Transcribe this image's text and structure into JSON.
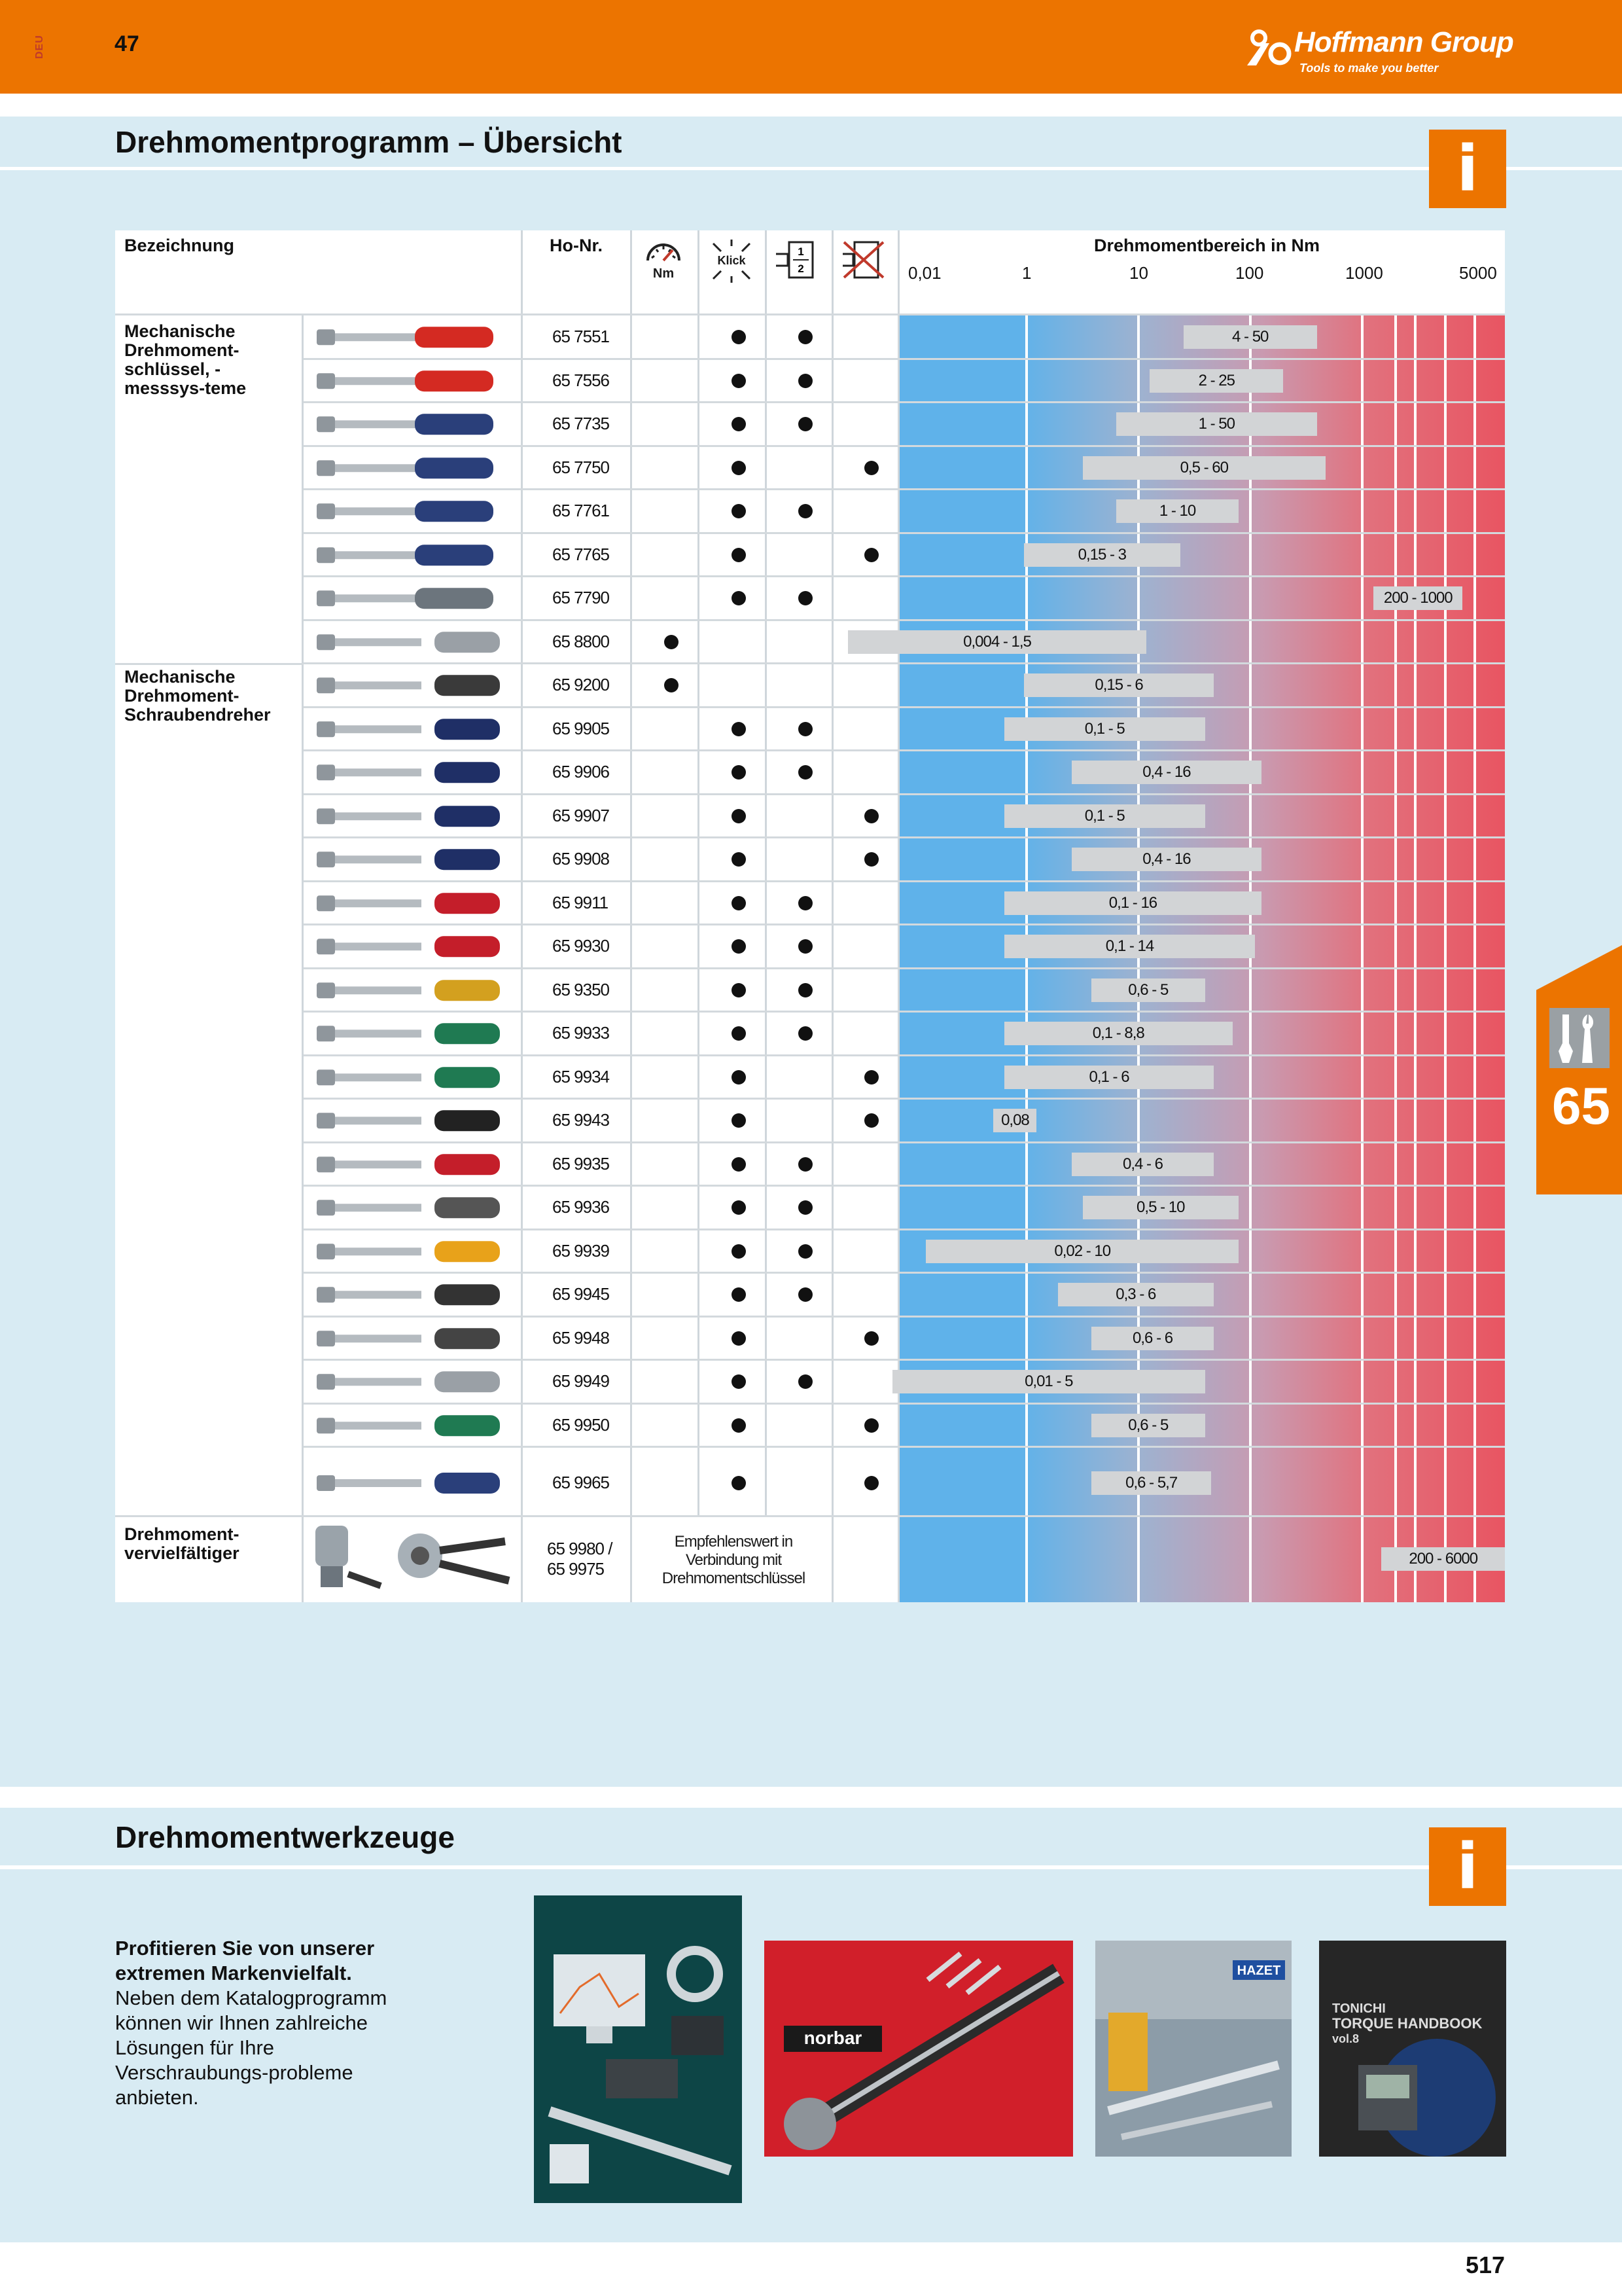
{
  "header": {
    "lang_code": "DEU",
    "page_ref": "47",
    "brand": "Hoffmann Group",
    "brand_mark": "®",
    "tagline": "Tools to make you better"
  },
  "section1": {
    "title": "Drehmomentprogramm – Übersicht",
    "info_icon": "i"
  },
  "table": {
    "headers": {
      "bezeichnung": "Bezeichnung",
      "hono": "Ho-Nr.",
      "nm_icon_label": "Nm",
      "klick_icon_label": "Klick",
      "fraction_icon": "1/2",
      "range_title": "Drehmomentbereich in Nm",
      "ticks": [
        "0,01",
        "1",
        "10",
        "100",
        "1000",
        "5000"
      ]
    },
    "categories": [
      "Mechanische Drehmoment-schlüssel, -messsys-teme",
      "Mechanische Drehmoment-Schraubendreher",
      "Drehmoment-vervielfältiger"
    ],
    "rows": [
      {
        "no": "65 7551",
        "c1": false,
        "c2": true,
        "c3": true,
        "c4": false,
        "range": "4 - 50"
      },
      {
        "no": "65 7556",
        "c1": false,
        "c2": true,
        "c3": true,
        "c4": false,
        "range": "2 - 25"
      },
      {
        "no": "65 7735",
        "c1": false,
        "c2": true,
        "c3": true,
        "c4": false,
        "range": "1 - 50"
      },
      {
        "no": "65 7750",
        "c1": false,
        "c2": true,
        "c3": false,
        "c4": true,
        "range": "0,5 - 60"
      },
      {
        "no": "65 7761",
        "c1": false,
        "c2": true,
        "c3": true,
        "c4": false,
        "range": "1 - 10"
      },
      {
        "no": "65 7765",
        "c1": false,
        "c2": true,
        "c3": false,
        "c4": true,
        "range": "0,15 - 3"
      },
      {
        "no": "65 7790",
        "c1": false,
        "c2": true,
        "c3": true,
        "c4": false,
        "range": "200 - 1000"
      },
      {
        "no": "65 8800",
        "c1": true,
        "c2": false,
        "c3": false,
        "c4": false,
        "range": "0,004 - 1,5"
      },
      {
        "no": "65 9200",
        "c1": true,
        "c2": false,
        "c3": false,
        "c4": false,
        "range": "0,15 - 6"
      },
      {
        "no": "65 9905",
        "c1": false,
        "c2": true,
        "c3": true,
        "c4": false,
        "range": "0,1 - 5"
      },
      {
        "no": "65 9906",
        "c1": false,
        "c2": true,
        "c3": true,
        "c4": false,
        "range": "0,4 - 16"
      },
      {
        "no": "65 9907",
        "c1": false,
        "c2": true,
        "c3": false,
        "c4": true,
        "range": "0,1 - 5"
      },
      {
        "no": "65 9908",
        "c1": false,
        "c2": true,
        "c3": false,
        "c4": true,
        "range": "0,4 - 16"
      },
      {
        "no": "65 9911",
        "c1": false,
        "c2": true,
        "c3": true,
        "c4": false,
        "range": "0,1 - 16"
      },
      {
        "no": "65 9930",
        "c1": false,
        "c2": true,
        "c3": true,
        "c4": false,
        "range": "0,1 - 14"
      },
      {
        "no": "65 9350",
        "c1": false,
        "c2": true,
        "c3": true,
        "c4": false,
        "range": "0,6 - 5"
      },
      {
        "no": "65 9933",
        "c1": false,
        "c2": true,
        "c3": true,
        "c4": false,
        "range": "0,1 - 8,8"
      },
      {
        "no": "65 9934",
        "c1": false,
        "c2": true,
        "c3": false,
        "c4": true,
        "range": "0,1 - 6"
      },
      {
        "no": "65 9943",
        "c1": false,
        "c2": true,
        "c3": false,
        "c4": true,
        "range": "0,08"
      },
      {
        "no": "65 9935",
        "c1": false,
        "c2": true,
        "c3": true,
        "c4": false,
        "range": "0,4 - 6"
      },
      {
        "no": "65 9936",
        "c1": false,
        "c2": true,
        "c3": true,
        "c4": false,
        "range": "0,5 - 10"
      },
      {
        "no": "65 9939",
        "c1": false,
        "c2": true,
        "c3": true,
        "c4": false,
        "range": "0,02 - 10"
      },
      {
        "no": "65 9945",
        "c1": false,
        "c2": true,
        "c3": true,
        "c4": false,
        "range": "0,3 - 6"
      },
      {
        "no": "65 9948",
        "c1": false,
        "c2": true,
        "c3": false,
        "c4": true,
        "range": "0,6 - 6"
      },
      {
        "no": "65 9949",
        "c1": false,
        "c2": true,
        "c3": true,
        "c4": false,
        "range": "0,01 - 5"
      },
      {
        "no": "65 9950",
        "c1": false,
        "c2": true,
        "c3": false,
        "c4": true,
        "range": "0,6 - 5"
      },
      {
        "no": "65 9965",
        "c1": false,
        "c2": true,
        "c3": false,
        "c4": true,
        "range": "0,6 - 5,7"
      }
    ],
    "last_row": {
      "no_line1": "65 9980 /",
      "no_line2": "65 9975",
      "note": "Empfehlenswert in Verbindung mit Drehmomentschlüssel",
      "range": "200 - 6000"
    }
  },
  "side_tab": {
    "number": "65"
  },
  "section2": {
    "title": "Drehmomentwerkzeuge",
    "info_icon": "i",
    "promo_bold": "Profitieren Sie von unserer extremen Markenvielfalt.",
    "promo_text": "Neben dem Katalogprogramm können wir Ihnen zahlreiche Lösungen für Ihre Verschraubungs-probleme anbieten.",
    "brand_images": [
      "norbar",
      "HAZET",
      "TONNICHI TORQUE HANDBOOK vol.8"
    ]
  },
  "footer": {
    "page_number": "517"
  },
  "colors": {
    "accent": "#ec7400",
    "band": "#d8ebf3",
    "scale_low": "#5fb0e8",
    "scale_high": "#e85260"
  }
}
